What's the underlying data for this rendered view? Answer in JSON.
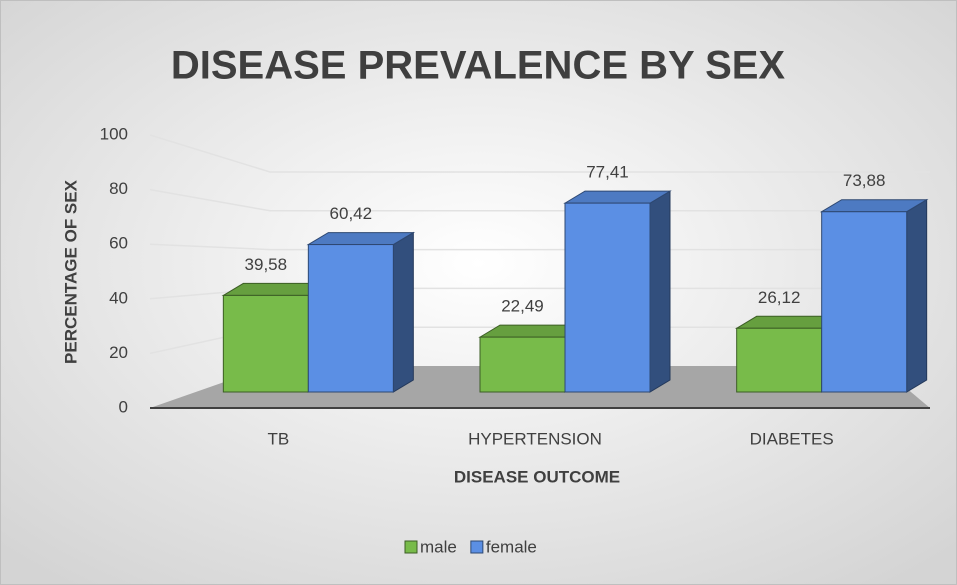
{
  "chart_data": {
    "type": "bar",
    "title": "DISEASE PREVALENCE BY SEX",
    "xlabel": "DISEASE OUTCOME",
    "ylabel": "PERCENTAGE OF SEX",
    "categories": [
      "TB",
      "HYPERTENSION",
      "DIABETES"
    ],
    "series": [
      {
        "name": "male",
        "color": "#78bb4a",
        "values": [
          39.58,
          22.49,
          26.12
        ],
        "value_labels": [
          "39,58",
          "22,49",
          "26,12"
        ]
      },
      {
        "name": "female",
        "color": "#5b8fe4",
        "values": [
          60.42,
          77.41,
          73.88
        ],
        "value_labels": [
          "60,42",
          "77,41",
          "73,88"
        ]
      }
    ],
    "ylim": [
      0,
      100
    ],
    "yticks": [
      0,
      20,
      40,
      60,
      80,
      100
    ],
    "grid": true,
    "legend": "bottom"
  }
}
